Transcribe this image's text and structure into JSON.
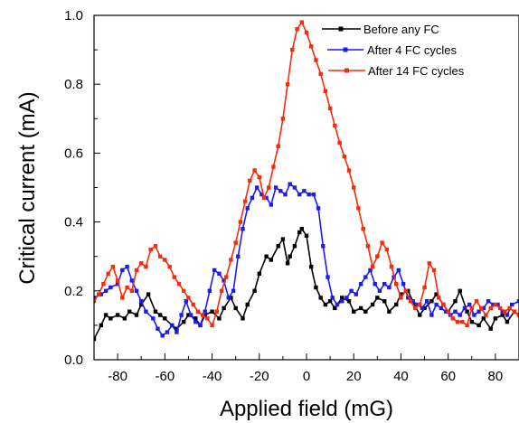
{
  "chart_data": {
    "type": "line",
    "title": "",
    "xlabel": "Applied field (mG)",
    "ylabel": "Critical current (mA)",
    "xlim": [
      -90,
      90
    ],
    "ylim": [
      0.0,
      1.0
    ],
    "x_ticks": [
      -80,
      -60,
      -40,
      -20,
      0,
      20,
      40,
      60,
      80
    ],
    "x_tick_labels": [
      "-80",
      "-60",
      "-40",
      "-20",
      "0",
      "20",
      "40",
      "60",
      "80"
    ],
    "y_ticks": [
      0.0,
      0.2,
      0.4,
      0.6,
      0.8,
      1.0
    ],
    "y_tick_labels": [
      "0.0",
      "0.2",
      "0.4",
      "0.6",
      "0.8",
      "1.0"
    ],
    "grid": false,
    "legend_position": "top-right",
    "series": [
      {
        "name": "Before any FC",
        "color": "#000000",
        "marker": "square",
        "x": [
          -90,
          -87,
          -85,
          -83,
          -80,
          -77,
          -75,
          -72,
          -70,
          -67,
          -64,
          -62,
          -60,
          -57,
          -55,
          -52,
          -50,
          -47,
          -45,
          -43,
          -40,
          -37,
          -35,
          -32,
          -30,
          -27,
          -25,
          -22,
          -20,
          -17,
          -15,
          -12,
          -10,
          -8,
          -7,
          -5,
          -3,
          -2,
          0,
          2,
          4,
          6,
          8,
          10,
          12,
          15,
          18,
          20,
          23,
          25,
          28,
          30,
          33,
          35,
          38,
          40,
          43,
          45,
          48,
          50,
          53,
          55,
          58,
          60,
          63,
          65,
          68,
          70,
          73,
          75,
          78,
          80,
          83,
          85,
          88,
          90
        ],
        "y": [
          0.06,
          0.1,
          0.13,
          0.12,
          0.13,
          0.12,
          0.14,
          0.13,
          0.16,
          0.19,
          0.14,
          0.13,
          0.12,
          0.1,
          0.09,
          0.11,
          0.13,
          0.12,
          0.1,
          0.13,
          0.14,
          0.12,
          0.15,
          0.18,
          0.15,
          0.12,
          0.16,
          0.2,
          0.25,
          0.3,
          0.29,
          0.33,
          0.35,
          0.28,
          0.3,
          0.33,
          0.37,
          0.38,
          0.36,
          0.27,
          0.21,
          0.18,
          0.16,
          0.17,
          0.15,
          0.18,
          0.17,
          0.14,
          0.15,
          0.14,
          0.16,
          0.18,
          0.17,
          0.14,
          0.16,
          0.19,
          0.2,
          0.17,
          0.13,
          0.15,
          0.17,
          0.19,
          0.16,
          0.14,
          0.17,
          0.2,
          0.14,
          0.11,
          0.1,
          0.12,
          0.09,
          0.12,
          0.13,
          0.11,
          0.14,
          0.13
        ]
      },
      {
        "name": "After 4 FC cycles",
        "color": "#1b1bf2",
        "marker": "square",
        "x": [
          -90,
          -87,
          -85,
          -83,
          -80,
          -78,
          -76,
          -74,
          -72,
          -70,
          -68,
          -65,
          -63,
          -61,
          -59,
          -57,
          -55,
          -53,
          -51,
          -49,
          -47,
          -45,
          -43,
          -41,
          -39,
          -37,
          -35,
          -33,
          -31,
          -29,
          -27,
          -25,
          -23,
          -21,
          -19,
          -17,
          -15,
          -13,
          -11,
          -9,
          -7,
          -5,
          -3,
          -1,
          1,
          3,
          5,
          7,
          9,
          11,
          13,
          15,
          17,
          19,
          21,
          23,
          25,
          27,
          29,
          31,
          33,
          35,
          37,
          39,
          41,
          43,
          45,
          47,
          49,
          51,
          53,
          55,
          57,
          59,
          61,
          63,
          65,
          67,
          69,
          71,
          73,
          75,
          77,
          79,
          81,
          83,
          85,
          87,
          90
        ],
        "y": [
          0.18,
          0.19,
          0.2,
          0.21,
          0.22,
          0.26,
          0.27,
          0.23,
          0.2,
          0.17,
          0.14,
          0.12,
          0.09,
          0.07,
          0.08,
          0.1,
          0.08,
          0.13,
          0.17,
          0.13,
          0.11,
          0.1,
          0.14,
          0.2,
          0.26,
          0.25,
          0.23,
          0.18,
          0.2,
          0.3,
          0.38,
          0.44,
          0.47,
          0.5,
          0.48,
          0.47,
          0.45,
          0.5,
          0.49,
          0.48,
          0.51,
          0.5,
          0.48,
          0.49,
          0.48,
          0.48,
          0.44,
          0.33,
          0.24,
          0.18,
          0.16,
          0.17,
          0.18,
          0.2,
          0.19,
          0.22,
          0.24,
          0.26,
          0.22,
          0.2,
          0.22,
          0.21,
          0.24,
          0.26,
          0.22,
          0.18,
          0.17,
          0.16,
          0.15,
          0.17,
          0.13,
          0.16,
          0.15,
          0.14,
          0.13,
          0.14,
          0.13,
          0.15,
          0.16,
          0.13,
          0.14,
          0.15,
          0.17,
          0.16,
          0.16,
          0.14,
          0.13,
          0.16,
          0.17
        ]
      },
      {
        "name": "After 14 FC cycles",
        "color": "#f52b0a",
        "marker": "square",
        "x": [
          -90,
          -88,
          -86,
          -84,
          -82,
          -80,
          -78,
          -76,
          -74,
          -72,
          -70,
          -68,
          -66,
          -64,
          -62,
          -60,
          -58,
          -56,
          -54,
          -52,
          -50,
          -48,
          -46,
          -44,
          -42,
          -40,
          -38,
          -36,
          -34,
          -32,
          -30,
          -28,
          -26,
          -24,
          -22,
          -20,
          -18,
          -16,
          -14,
          -12,
          -10,
          -8,
          -6,
          -4,
          -2,
          0,
          2,
          4,
          6,
          8,
          10,
          12,
          14,
          16,
          18,
          20,
          22,
          24,
          26,
          28,
          30,
          32,
          34,
          36,
          38,
          40,
          42,
          44,
          46,
          48,
          50,
          52,
          54,
          56,
          58,
          60,
          62,
          64,
          66,
          68,
          70,
          72,
          74,
          76,
          78,
          80,
          82,
          84,
          86,
          88,
          90
        ],
        "y": [
          0.17,
          0.19,
          0.22,
          0.25,
          0.27,
          0.23,
          0.18,
          0.21,
          0.2,
          0.26,
          0.28,
          0.27,
          0.32,
          0.33,
          0.3,
          0.29,
          0.27,
          0.24,
          0.22,
          0.2,
          0.18,
          0.16,
          0.14,
          0.13,
          0.12,
          0.1,
          0.14,
          0.2,
          0.24,
          0.29,
          0.34,
          0.4,
          0.46,
          0.52,
          0.55,
          0.53,
          0.47,
          0.5,
          0.56,
          0.62,
          0.7,
          0.8,
          0.9,
          0.96,
          0.98,
          0.95,
          0.91,
          0.87,
          0.83,
          0.78,
          0.73,
          0.68,
          0.63,
          0.59,
          0.55,
          0.5,
          0.44,
          0.38,
          0.33,
          0.27,
          0.3,
          0.34,
          0.32,
          0.27,
          0.22,
          0.18,
          0.2,
          0.17,
          0.15,
          0.16,
          0.21,
          0.28,
          0.26,
          0.18,
          0.16,
          0.14,
          0.12,
          0.11,
          0.11,
          0.1,
          0.15,
          0.17,
          0.15,
          0.13,
          0.15,
          0.16,
          0.15,
          0.14,
          0.15,
          0.14,
          0.13
        ]
      }
    ]
  }
}
